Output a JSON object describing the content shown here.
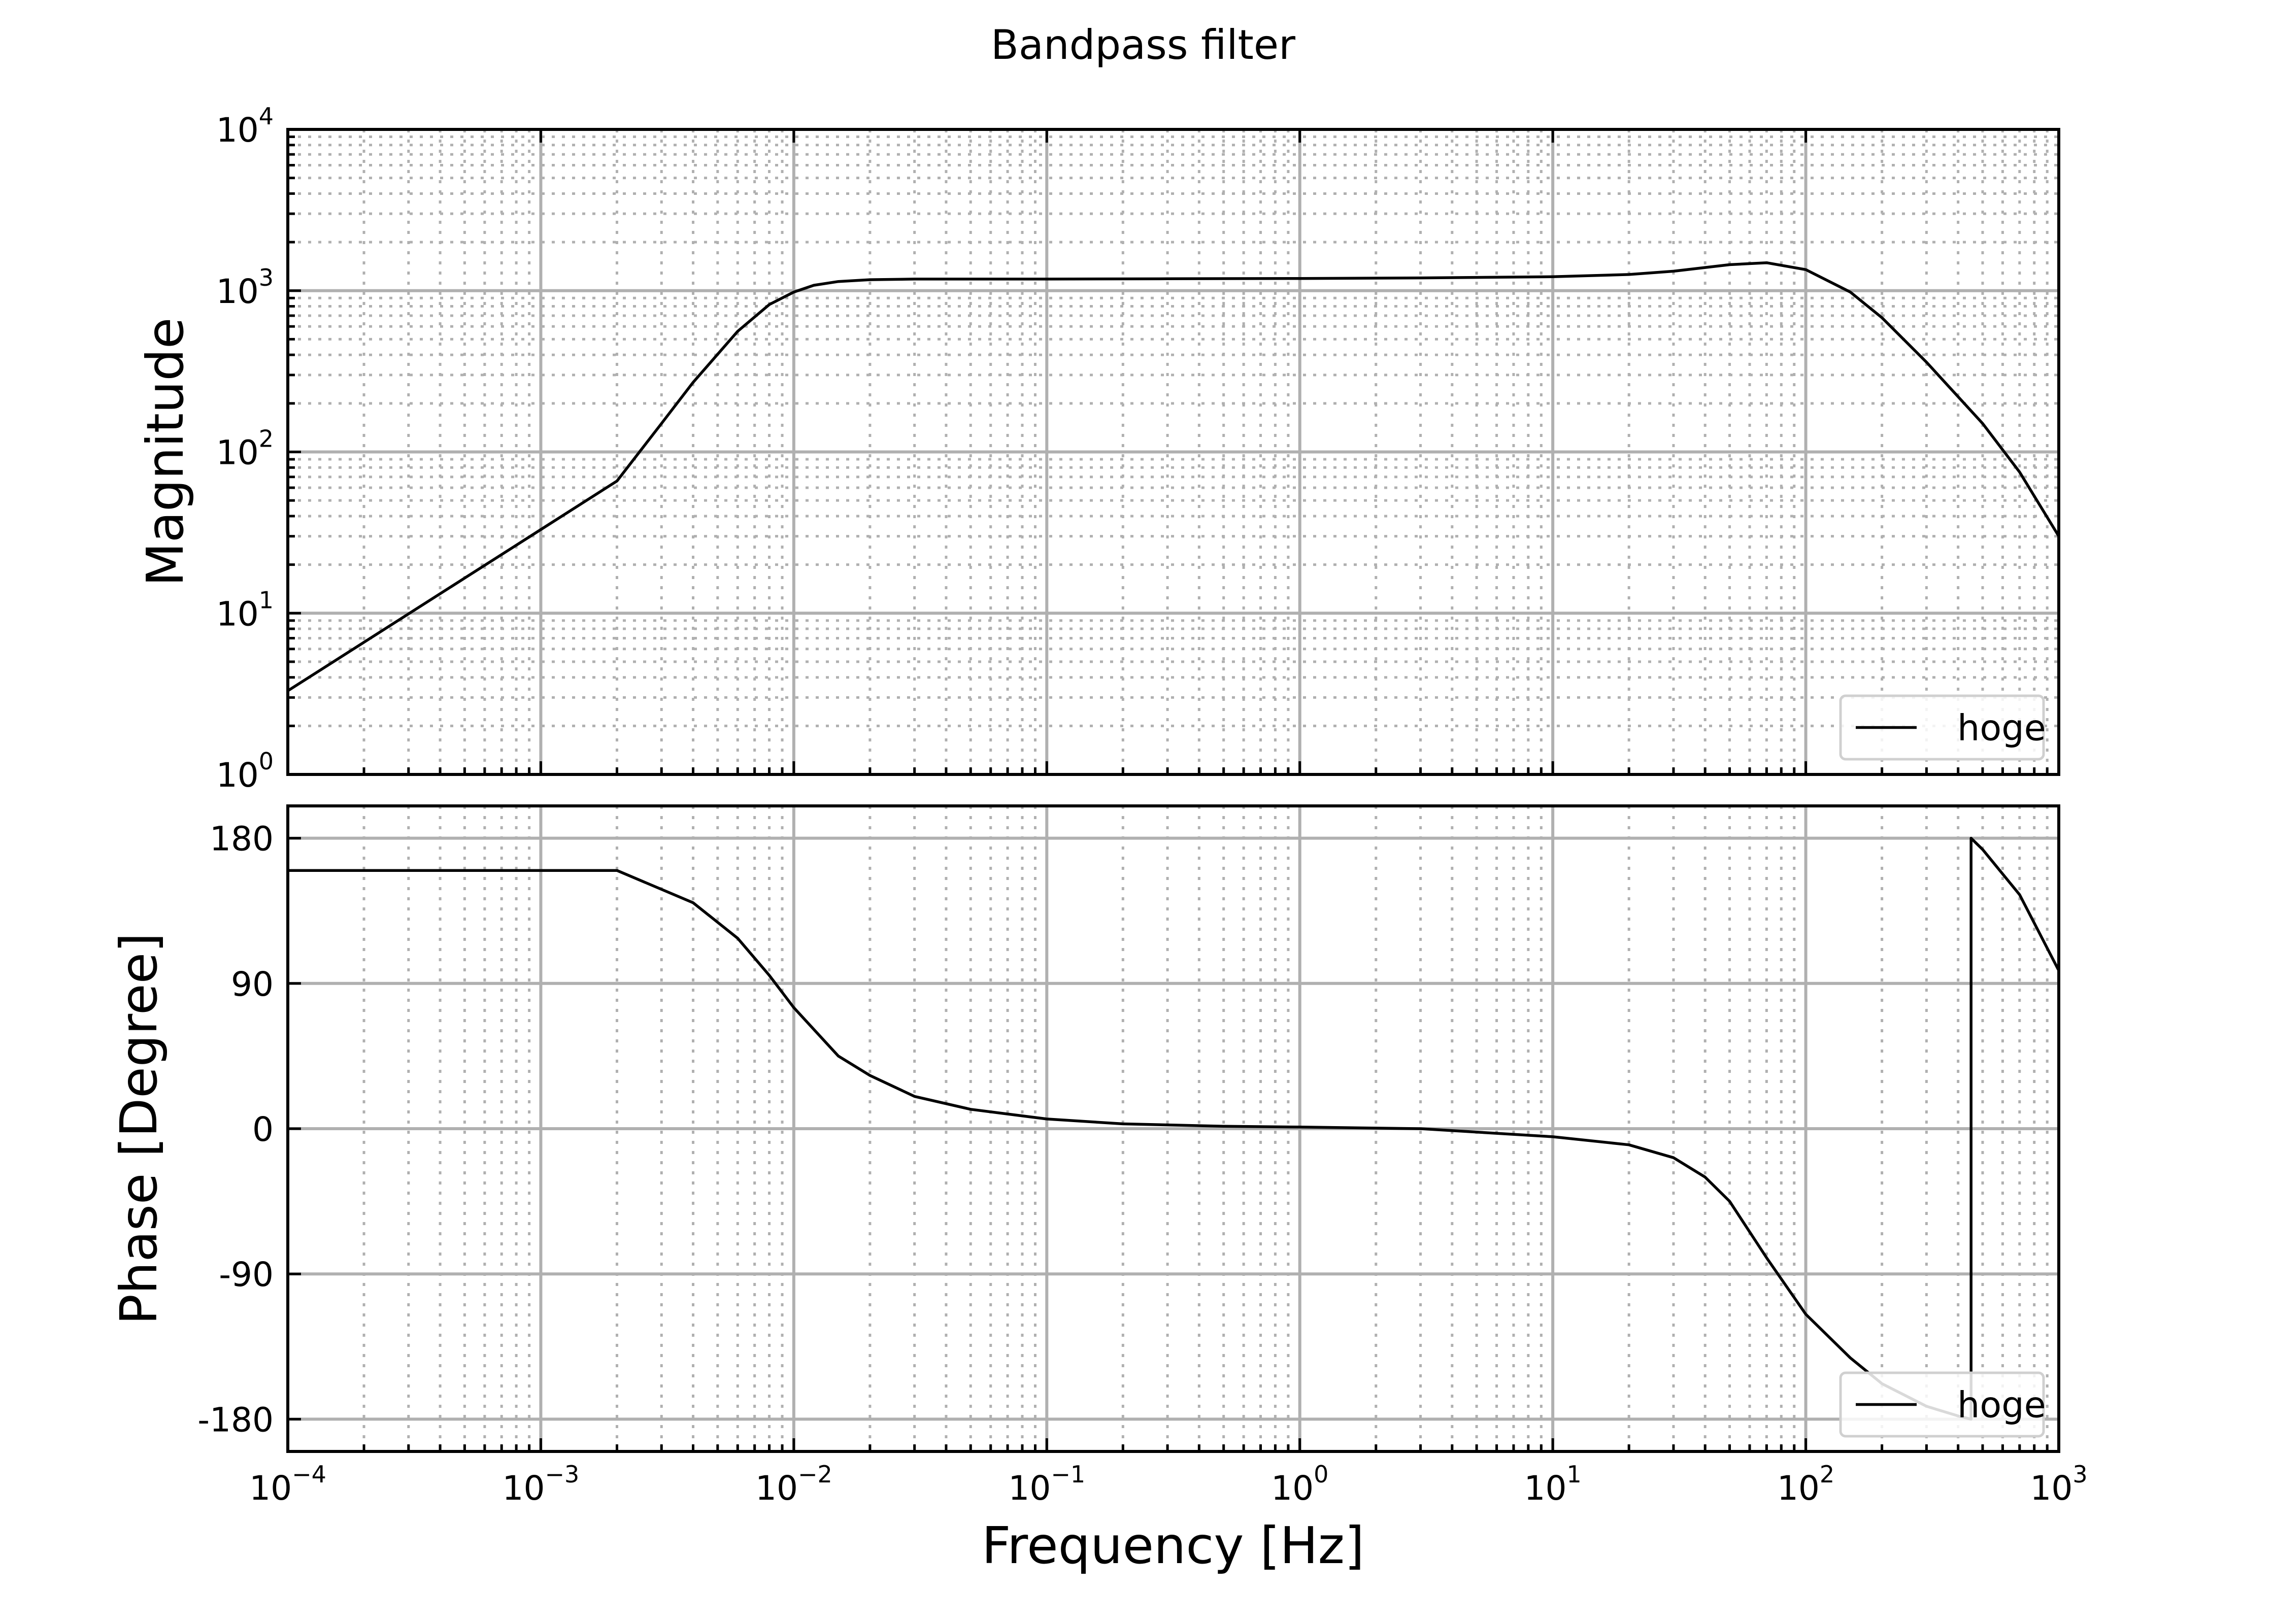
{
  "chart_data": {
    "title": "Bandpass filter",
    "xlabel": "Frequency [Hz]",
    "xscale": "log",
    "xlim": [
      0.0001,
      1000
    ],
    "x_tick_labels": [
      {
        "base": "10",
        "exp": "−4"
      },
      {
        "base": "10",
        "exp": "−3"
      },
      {
        "base": "10",
        "exp": "−2"
      },
      {
        "base": "10",
        "exp": "−1"
      },
      {
        "base": "10",
        "exp": "0"
      },
      {
        "base": "10",
        "exp": "1"
      },
      {
        "base": "10",
        "exp": "2"
      },
      {
        "base": "10",
        "exp": "3"
      }
    ],
    "grid": true,
    "line_color": "#000000",
    "grid_color": "#b0b0b0",
    "panels": [
      {
        "type": "line",
        "ylabel": "Magnitude",
        "yscale": "log",
        "ylim": [
          1,
          10000
        ],
        "y_tick_labels": [
          {
            "base": "10",
            "exp": "0"
          },
          {
            "base": "10",
            "exp": "1"
          },
          {
            "base": "10",
            "exp": "2"
          },
          {
            "base": "10",
            "exp": "3"
          },
          {
            "base": "10",
            "exp": "4"
          }
        ],
        "legend": {
          "position": "lower-right"
        },
        "series": [
          {
            "name": "hoge",
            "x": [
              0.0001,
              0.0002,
              0.0005,
              0.001,
              0.002,
              0.003,
              0.004,
              0.006,
              0.008,
              0.01,
              0.012,
              0.015,
              0.02,
              0.03,
              0.05,
              0.1,
              0.3,
              1,
              3,
              10,
              20,
              30,
              50,
              70,
              100,
              150,
              200,
              300,
              500,
              700,
              1000
            ],
            "y": [
              3.3,
              6.6,
              16.5,
              33,
              66,
              150,
              270,
              560,
              820,
              980,
              1080,
              1140,
              1170,
              1180,
              1180,
              1180,
              1185,
              1190,
              1200,
              1220,
              1260,
              1320,
              1450,
              1490,
              1350,
              980,
              680,
              360,
              150,
              75,
              30
            ]
          }
        ]
      },
      {
        "type": "line",
        "ylabel": "Phase [Degree]",
        "yscale": "linear",
        "ylim": [
          -200,
          200
        ],
        "y_ticks": [
          -180,
          -90,
          0,
          90,
          180
        ],
        "y_tick_labels": [
          "-180",
          "-90",
          "0",
          "90",
          "180"
        ],
        "legend": {
          "position": "lower-right"
        },
        "series": [
          {
            "name": "hoge",
            "x": [
              0.0001,
              0.001,
              0.002,
              0.004,
              0.006,
              0.008,
              0.01,
              0.015,
              0.02,
              0.03,
              0.05,
              0.1,
              0.2,
              0.5,
              1,
              3,
              10,
              20,
              30,
              40,
              50,
              70,
              100,
              150,
              200,
              300,
              400,
              450,
              450.01,
              500,
              700,
              1000
            ],
            "y": [
              160,
              160,
              160,
              140,
              118,
              95,
              75,
              45,
              33,
              20,
              12,
              6,
              3,
              1.5,
              1,
              0,
              -5,
              -10,
              -18,
              -30,
              -45,
              -80,
              -115,
              -142,
              -158,
              -172,
              -178,
              -180,
              180,
              173,
              145,
              98
            ]
          }
        ]
      }
    ]
  }
}
